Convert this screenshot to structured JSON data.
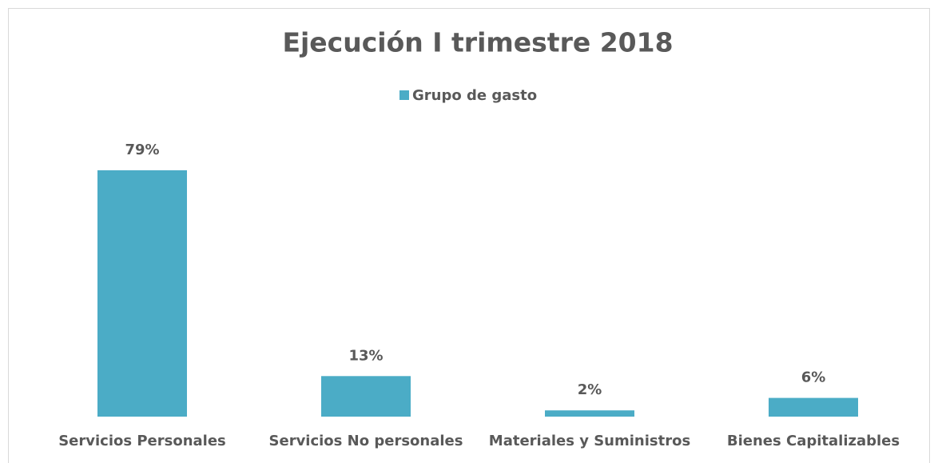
{
  "chart_data": {
    "type": "bar",
    "title": "Ejecución I trimestre 2018",
    "categories": [
      "Servicios Personales",
      "Servicios No personales",
      "Materiales y Suministros",
      "Bienes Capitalizables"
    ],
    "series": [
      {
        "name": "Grupo de gasto",
        "color": "#4bacc6",
        "values": [
          79,
          13,
          2,
          6
        ],
        "value_labels": [
          "79%",
          "13%",
          "2%",
          "6%"
        ]
      }
    ]
  }
}
